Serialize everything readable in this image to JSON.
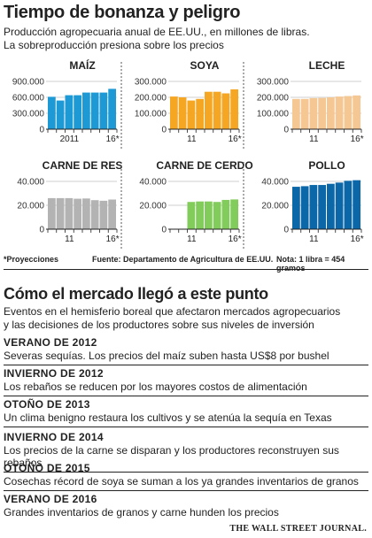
{
  "header": {
    "title": "Tiempo de bonanza y peligro",
    "subtitle_1": "Producción agropecuaria anual de EE.UU., en millones de libras.",
    "subtitle_2": "La sobreproducción presiona sobre los precios"
  },
  "notes": {
    "projections": "*Proyecciones",
    "source": "Fuente: Departamento de Agricultura de EE.UU.",
    "unit_note": "Nota: 1 libra = 454 gramos"
  },
  "colors": {
    "accent": "#1d9ad6",
    "top_accent": "#0b67a8",
    "muted": "#f5c792",
    "muted2": "#82cc5c"
  },
  "chart_data": [
    {
      "type": "bar",
      "title": "MAÍZ",
      "color": "#1d9ad6",
      "categories": [
        "2009",
        "2010",
        "2011",
        "2012",
        "2013",
        "2014",
        "2015",
        "2016*"
      ],
      "values": [
        610000,
        540000,
        640000,
        640000,
        690000,
        690000,
        690000,
        760000
      ],
      "ylim": [
        0,
        900000
      ],
      "yticks": [
        "0",
        "300.000",
        "600.000",
        "900.000"
      ],
      "tick_values": [
        0,
        300000,
        600000,
        900000
      ],
      "xtick_labels": [
        {
          "i": 2,
          "label": "2011"
        },
        {
          "i": 7,
          "label": "16*"
        }
      ]
    },
    {
      "type": "bar",
      "title": "SOYA",
      "color": "#f5a623",
      "categories": [
        "2009",
        "2010",
        "2011",
        "2012",
        "2013",
        "2014",
        "2015",
        "2016*"
      ],
      "values": [
        205000,
        200000,
        180000,
        190000,
        235000,
        235000,
        225000,
        250000
      ],
      "ylim": [
        0,
        300000
      ],
      "yticks": [
        "0",
        "100.000",
        "200.000",
        "300.000"
      ],
      "tick_values": [
        0,
        100000,
        200000,
        300000
      ],
      "xtick_labels": [
        {
          "i": 2,
          "label": "11"
        },
        {
          "i": 7,
          "label": "16*"
        }
      ]
    },
    {
      "type": "bar",
      "title": "LECHE",
      "color": "#f5c792",
      "categories": [
        "2009",
        "2010",
        "2011",
        "2012",
        "2013",
        "2014",
        "2015",
        "2016*"
      ],
      "values": [
        190000,
        190000,
        195000,
        196000,
        200000,
        205000,
        208000,
        212000
      ],
      "ylim": [
        0,
        300000
      ],
      "yticks": [
        "0",
        "100.000",
        "200.000",
        "300.000"
      ],
      "tick_values": [
        0,
        100000,
        200000,
        300000
      ],
      "xtick_labels": [
        {
          "i": 2,
          "label": "11"
        },
        {
          "i": 7,
          "label": "16*"
        }
      ]
    },
    {
      "type": "bar",
      "title": "CARNE DE RES",
      "color": "#b3b3b3",
      "categories": [
        "2009",
        "2010",
        "2011",
        "2012",
        "2013",
        "2014",
        "2015",
        "2016*"
      ],
      "values": [
        26000,
        26000,
        26000,
        25500,
        25700,
        24300,
        23800,
        24800
      ],
      "ylim": [
        0,
        40000
      ],
      "yticks": [
        "0",
        "20.000",
        "40.000"
      ],
      "tick_values": [
        0,
        20000,
        40000
      ],
      "xtick_labels": [
        {
          "i": 2,
          "label": "11"
        },
        {
          "i": 7,
          "label": "16*"
        }
      ]
    },
    {
      "type": "bar",
      "title": "CARNE DE CERDO",
      "color": "#82cc5c",
      "categories": [
        "2009",
        "2010",
        "2011",
        "2012",
        "2013",
        "2014",
        "2015",
        "2016*"
      ],
      "values": [
        null,
        null,
        22800,
        23200,
        23200,
        22800,
        24500,
        24900
      ],
      "ylim": [
        0,
        40000
      ],
      "yticks": [
        "0",
        "20.000",
        "40.000"
      ],
      "tick_values": [
        0,
        20000,
        40000
      ],
      "xtick_labels": [
        {
          "i": 2,
          "label": "11"
        },
        {
          "i": 7,
          "label": "16*"
        }
      ]
    },
    {
      "type": "bar",
      "title": "POLLO",
      "color": "#0b67a8",
      "categories": [
        "2009",
        "2010",
        "2011",
        "2012",
        "2013",
        "2014",
        "2015",
        "2016*"
      ],
      "values": [
        35500,
        36000,
        37000,
        37000,
        38000,
        39000,
        40500,
        41000
      ],
      "ylim": [
        0,
        40000
      ],
      "yticks": [
        "0",
        "20.000",
        "40.000"
      ],
      "tick_values": [
        0,
        20000,
        40000
      ],
      "xtick_labels": [
        {
          "i": 2,
          "label": "11"
        },
        {
          "i": 7,
          "label": "16*"
        }
      ]
    }
  ],
  "section": {
    "title": "Cómo el mercado llegó a este punto",
    "intro_1": "Eventos en el hemisferio boreal que afectaron mercados agropecuarios",
    "intro_2": "y las decisiones de los productores sobre sus niveles de inversión"
  },
  "events": [
    {
      "head": "VERANO DE 2012",
      "desc": "Severas sequías. Los precios del maíz suben hasta US$8 por bushel"
    },
    {
      "head": "INVIERNO DE 2012",
      "desc": "Los rebaños se reducen por los mayores costos de alimentación"
    },
    {
      "head": "OTOÑO DE 2013",
      "desc": "Un clima benigno restaura los cultivos y se atenúa la sequía en Texas"
    },
    {
      "head": "INVIERNO DE 2014",
      "desc": "Los precios de la carne se disparan y los productores reconstruyen sus rebaños"
    },
    {
      "head": "OTOÑO DE 2015",
      "desc": "Cosechas récord de soya se suman a los ya grandes inventarios de granos"
    },
    {
      "head": "VERANO DE 2016",
      "desc": "Grandes inventarios de granos y carne hunden los precios"
    }
  ],
  "footer": {
    "brand": "THE WALL STREET JOURNAL."
  }
}
